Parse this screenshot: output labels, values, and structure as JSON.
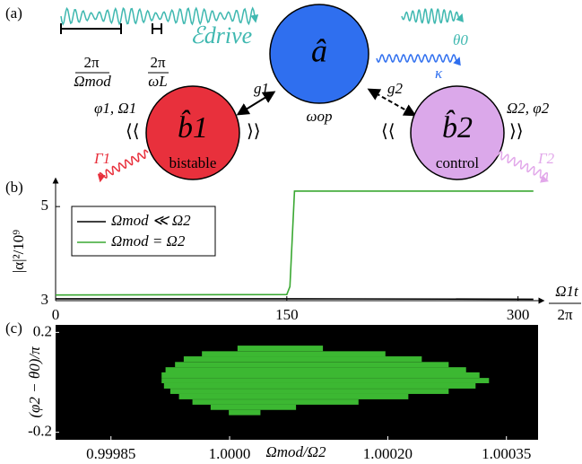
{
  "diagram": {
    "label": "(a)",
    "period_mod": {
      "numerator": "2π",
      "denominator": "Ωmod"
    },
    "period_L": {
      "numerator": "2π",
      "denominator": "ωL"
    },
    "drive": "ℰdrive",
    "mode_a": {
      "symbol": "â",
      "label": "ωop",
      "output_phase": "θ0",
      "loss": "κ"
    },
    "coupling_1": "g1",
    "coupling_2": "g2",
    "mode_b1": {
      "symbol": "b̂1",
      "label": "bistable",
      "params": "φ1, Ω1",
      "loss": "Γ1"
    },
    "mode_b2": {
      "symbol": "b̂2",
      "label": "control",
      "params": "Ω2, φ2",
      "loss": "Γ2"
    }
  },
  "chart_data": [
    {
      "type": "line",
      "panel_label": "(b)",
      "ylabel": "|α|²/10⁹",
      "xlabel": {
        "numerator": "Ω1t",
        "denominator": "2π"
      },
      "x": [
        0,
        150,
        152,
        155,
        310
      ],
      "xlim": [
        0,
        313
      ],
      "xticks": [
        0,
        150,
        300
      ],
      "ylim": [
        3,
        5.48
      ],
      "yticks": [
        3,
        5
      ],
      "series": [
        {
          "name": "Ωmod ≪ Ω2",
          "color": "#000000",
          "values": [
            3.04,
            3.04,
            3.04,
            3.04,
            3.03
          ]
        },
        {
          "name": "Ωmod = Ω2",
          "color": "#3aa832",
          "values": [
            3.12,
            3.13,
            3.3,
            5.33,
            5.33
          ]
        }
      ]
    },
    {
      "type": "heatmap",
      "panel_label": "(c)",
      "xlabel": "Ωmod/Ω2",
      "ylabel": "(φ2 − θ0)/π",
      "xlim": [
        0.99978,
        1.00039
      ],
      "xticks": [
        0.99985,
        {
          "value": 1.0,
          "label": "1.0000"
        },
        {
          "value": 1.0002,
          "label": "1.00020"
        },
        1.00035
      ],
      "ylim": [
        -0.23,
        0.23
      ],
      "yticks": [
        0.2,
        -0.2
      ],
      "background": "#000000",
      "color": "#3cb832",
      "rows": [
        {
          "y": 0.136,
          "x0": 1.00001,
          "x1": 1.000118
        },
        {
          "y": 0.114,
          "x0": 0.999965,
          "x1": 1.000197
        },
        {
          "y": 0.093,
          "x0": 0.999942,
          "x1": 1.000243
        },
        {
          "y": 0.071,
          "x0": 0.999931,
          "x1": 1.000277
        },
        {
          "y": 0.05,
          "x0": 0.999919,
          "x1": 1.000299
        },
        {
          "y": 0.029,
          "x0": 0.999914,
          "x1": 1.000316
        },
        {
          "y": 0.007,
          "x0": 0.999914,
          "x1": 1.000328
        },
        {
          "y": -0.014,
          "x0": 0.999917,
          "x1": 1.000311
        },
        {
          "y": -0.036,
          "x0": 0.999925,
          "x1": 1.000277
        },
        {
          "y": -0.057,
          "x0": 0.999936,
          "x1": 1.000226
        },
        {
          "y": -0.079,
          "x0": 0.999953,
          "x1": 1.000163
        },
        {
          "y": -0.1,
          "x0": 0.999976,
          "x1": 1.000084
        },
        {
          "y": -0.121,
          "x0": 0.999999,
          "x1": 1.000039
        }
      ]
    }
  ]
}
